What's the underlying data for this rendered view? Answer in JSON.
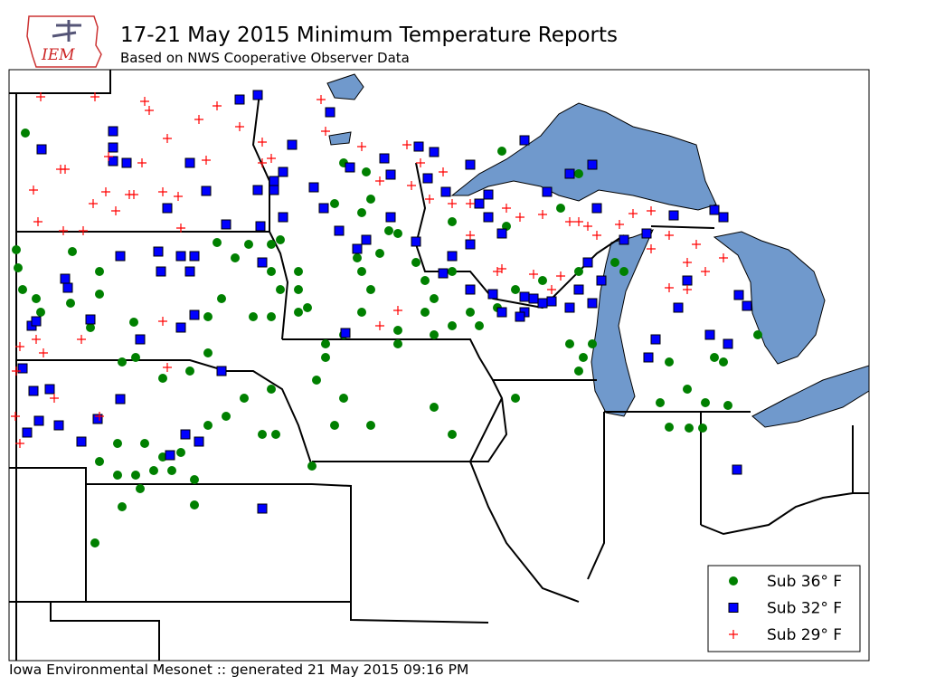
{
  "logo": {
    "text": "IEM"
  },
  "header": {
    "title": "17-21 May 2015 Minimum Temperature Reports",
    "subtitle": "Based on NWS Cooperative Observer Data"
  },
  "legend": {
    "entries": [
      {
        "label": "Sub 36° F",
        "color": "#008000",
        "marker": "circle"
      },
      {
        "label": "Sub 32° F",
        "color": "#0000ff",
        "marker": "square"
      },
      {
        "label": "Sub 29° F",
        "color": "#ff0000",
        "marker": "plus"
      }
    ]
  },
  "footer": {
    "text": "Iowa Environmental Mesonet :: generated 21 May 2015 09:16 PM"
  }
}
